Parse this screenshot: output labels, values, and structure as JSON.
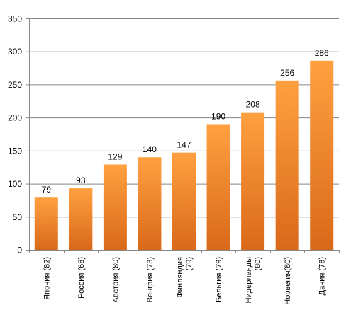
{
  "chart_data": {
    "type": "bar",
    "title": "",
    "xlabel": "",
    "ylabel": "",
    "ylim": [
      0,
      350
    ],
    "ytick_step": 50,
    "grid": true,
    "legend": "none",
    "bar_color_light": "#FFA040",
    "bar_color_dark": "#D9691A",
    "categories": [
      [
        "Япония (82)"
      ],
      [
        "Россия (68)"
      ],
      [
        "Австрия (80)"
      ],
      [
        "Венгрия (73)"
      ],
      [
        "Финляндия",
        "(79)"
      ],
      [
        "Бельгия (79)"
      ],
      [
        "Нидерланды",
        "(80)"
      ],
      [
        "Норвегия(80)"
      ],
      [
        "Дания (78)"
      ]
    ],
    "values": [
      79,
      93,
      129,
      140,
      147,
      190,
      208,
      256,
      286
    ]
  }
}
